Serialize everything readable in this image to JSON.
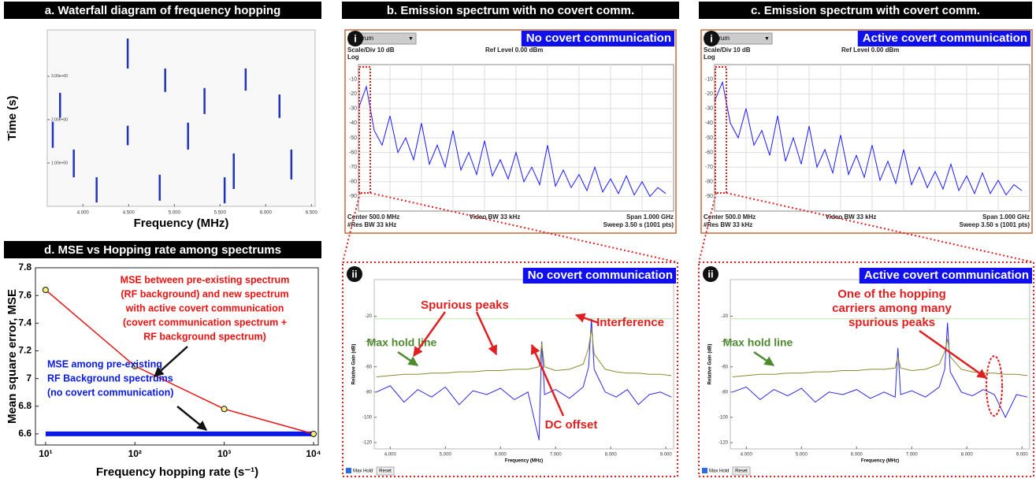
{
  "chart_data": [
    {
      "type": "waterfall",
      "title": "a. Waterfall diagram of frequency hopping",
      "x_label": "Frequency (MHz)",
      "y_label": "Time (s)",
      "color": "#2233bb",
      "xlim": [
        3.61,
        6.54
      ],
      "ylim": [
        0,
        4.07
      ],
      "xticks": [
        {
          "value": 4,
          "label": "4.000"
        },
        {
          "value": 4.5,
          "label": "4.500"
        },
        {
          "value": 5,
          "label": "5.000"
        },
        {
          "value": 5.5,
          "label": "5.500"
        },
        {
          "value": 6,
          "label": "6.000"
        },
        {
          "value": 6.5,
          "label": "6.500"
        }
      ],
      "yticks": [
        {
          "value": 1,
          "label": "1.00e+00"
        },
        {
          "value": 2,
          "label": "2.00e+00"
        },
        {
          "value": 3,
          "label": "3.00e+00"
        }
      ],
      "x": [
        4.49,
        4.9,
        5.78,
        3.75,
        5.33,
        3.67,
        4.49,
        5.15,
        5.65,
        3.9,
        6.28,
        4.15,
        4.84,
        5.55,
        6.15
      ],
      "y0": [
        3.18,
        2.64,
        2.67,
        2.04,
        2.13,
        1.35,
        1.41,
        1.31,
        0.4,
        0.67,
        0.62,
        0.09,
        0.13,
        0.07,
        2.04
      ],
      "y1": [
        3.87,
        3.18,
        3.18,
        2.62,
        2.73,
        1.95,
        1.86,
        1.93,
        1.22,
        1.31,
        1.31,
        0.67,
        0.73,
        0.67,
        2.58
      ]
    },
    {
      "type": "analyzer",
      "title": "b. Emission spectrum with no covert comm.",
      "badge": "No covert communication",
      "marker": "i",
      "color": "#1a1aff",
      "screen_labels": {
        "menu": "trum",
        "scale": "Scale/Div 10 dB",
        "ref": "Ref Level 0.00 dBm",
        "log": "Log",
        "center": "Center 500.0 MHz",
        "res": "#Res BW 33 kHz",
        "video": "Video BW 33 kHz",
        "span": "Span 1.000 GHz",
        "sweep": "Sweep 3.50 s (1001 pts)"
      },
      "xlim": [
        0,
        1000
      ],
      "ylim": [
        -100,
        0
      ],
      "yticks": [
        -10,
        -20,
        -30,
        -40,
        -50,
        -60,
        -70,
        -80,
        -90
      ],
      "grid": true,
      "x": [
        0,
        25,
        50,
        75,
        100,
        125,
        150,
        175,
        200,
        225,
        250,
        275,
        300,
        325,
        350,
        375,
        400,
        425,
        450,
        475,
        500,
        525,
        550,
        575,
        600,
        625,
        650,
        675,
        700,
        725,
        750,
        775,
        800,
        825,
        850,
        875,
        900,
        925,
        950,
        975
      ],
      "values": [
        -30,
        -15,
        -45,
        -55,
        -35,
        -60,
        -50,
        -65,
        -40,
        -68,
        -55,
        -70,
        -45,
        -72,
        -60,
        -75,
        -52,
        -76,
        -65,
        -78,
        -60,
        -80,
        -70,
        -82,
        -55,
        -83,
        -72,
        -84,
        -75,
        -86,
        -70,
        -87,
        -78,
        -88,
        -76,
        -89,
        -80,
        -90,
        -84,
        -88
      ]
    },
    {
      "type": "analyzer",
      "title": "c. Emission spectrum with covert comm.",
      "badge": "Active covert communication",
      "marker": "i",
      "color": "#1a1aff",
      "screen_labels": {
        "menu": "trum",
        "scale": "Scale/Div 10 dB",
        "ref": "Ref Level 0.00 dBm",
        "log": "Log",
        "center": "Center 500.0 MHz",
        "res": "#Res BW 33 kHz",
        "video": "Video BW 33 kHz",
        "span": "Span 1.000 GHz",
        "sweep": "Sweep 3.50 s (1001 pts)"
      },
      "xlim": [
        0,
        1000
      ],
      "ylim": [
        -100,
        0
      ],
      "yticks": [
        -10,
        -20,
        -30,
        -40,
        -50,
        -60,
        -70,
        -80,
        -90
      ],
      "grid": true,
      "x": [
        0,
        25,
        50,
        75,
        100,
        125,
        150,
        175,
        200,
        225,
        250,
        275,
        300,
        325,
        350,
        375,
        400,
        425,
        450,
        475,
        500,
        525,
        550,
        575,
        600,
        625,
        650,
        675,
        700,
        725,
        750,
        775,
        800,
        825,
        850,
        875,
        900,
        925,
        950,
        975
      ],
      "values": [
        -25,
        -12,
        -40,
        -50,
        -30,
        -55,
        -45,
        -62,
        -35,
        -66,
        -50,
        -68,
        -42,
        -70,
        -58,
        -74,
        -48,
        -75,
        -62,
        -77,
        -55,
        -79,
        -66,
        -81,
        -58,
        -82,
        -70,
        -84,
        -73,
        -85,
        -68,
        -86,
        -76,
        -88,
        -74,
        -88,
        -79,
        -89,
        -82,
        -86
      ]
    },
    {
      "type": "zoom",
      "badge": "No covert communication",
      "marker": "ii",
      "x_label": "Frequency (MHz)",
      "y_label": "Relative Gain (dB)",
      "checkbox": "Max Hold",
      "button": "Reset",
      "xlim": [
        3.71,
        9.14
      ],
      "ylim": [
        -125,
        9
      ],
      "xticks": [
        {
          "value": 4,
          "label": "4.000"
        },
        {
          "value": 5,
          "label": "5.000"
        },
        {
          "value": 6,
          "label": "6.000"
        },
        {
          "value": 7,
          "label": "7.000"
        },
        {
          "value": 8,
          "label": "8.000"
        },
        {
          "value": 9,
          "label": "9.000"
        }
      ],
      "yticks": [
        -20,
        -40,
        -60,
        -80,
        -100,
        -120
      ],
      "threshold_line": {
        "value": -22,
        "color": "#b8e6a8"
      },
      "x": [
        3.75,
        4.0,
        4.25,
        4.5,
        4.75,
        5.0,
        5.25,
        5.5,
        5.75,
        6.0,
        6.25,
        6.5,
        6.7,
        6.75,
        6.8,
        7.0,
        7.25,
        7.5,
        7.6,
        7.65,
        7.7,
        7.9,
        8.1,
        8.3,
        8.5,
        8.7,
        8.9,
        9.1
      ],
      "series": [
        {
          "color": "#2a2aee",
          "values": [
            -80,
            -75,
            -88,
            -78,
            -84,
            -76,
            -90,
            -79,
            -82,
            -77,
            -86,
            -80,
            -118,
            -40,
            -82,
            -78,
            -85,
            -76,
            -60,
            -22,
            -62,
            -80,
            -84,
            -78,
            -90,
            -82,
            -80,
            -84
          ]
        },
        {
          "color": "#8a8a30",
          "values": [
            -68,
            -67,
            -66,
            -66,
            -65,
            -65,
            -64,
            -64,
            -63,
            -63,
            -62,
            -62,
            -60,
            -42,
            -60,
            -63,
            -62,
            -58,
            -45,
            -30,
            -50,
            -62,
            -64,
            -65,
            -65,
            -66,
            -66,
            -67
          ]
        }
      ],
      "annotations": [
        {
          "text": "Spurious peaks",
          "color": "#e02020"
        },
        {
          "text": "Interference",
          "color": "#e02020"
        },
        {
          "text": "DC offset",
          "color": "#e02020"
        },
        {
          "text": "Max hold line",
          "color": "#4e8a2e"
        }
      ]
    },
    {
      "type": "zoom",
      "badge": "Active covert communication",
      "marker": "ii",
      "x_label": "Frequency (MHz)",
      "y_label": "Relative Gain (dB)",
      "checkbox": "Max Hold",
      "button": "Reset",
      "xlim": [
        3.71,
        9.14
      ],
      "ylim": [
        -125,
        9
      ],
      "xticks": [
        {
          "value": 4,
          "label": "4.000"
        },
        {
          "value": 5,
          "label": "5.000"
        },
        {
          "value": 6,
          "label": "6.000"
        },
        {
          "value": 7,
          "label": "7.000"
        },
        {
          "value": 8,
          "label": "8.000"
        },
        {
          "value": 9,
          "label": "9.000"
        }
      ],
      "yticks": [
        -20,
        -40,
        -60,
        -80,
        -100,
        -120
      ],
      "threshold_line": {
        "value": -22,
        "color": "#b8e6a8"
      },
      "x": [
        3.75,
        4.0,
        4.25,
        4.5,
        4.75,
        5.0,
        5.25,
        5.5,
        5.75,
        6.0,
        6.25,
        6.5,
        6.7,
        6.75,
        6.8,
        7.0,
        7.25,
        7.5,
        7.6,
        7.65,
        7.7,
        7.9,
        8.1,
        8.3,
        8.5,
        8.7,
        8.9,
        9.1
      ],
      "series": [
        {
          "color": "#2a2aee",
          "values": [
            -80,
            -76,
            -86,
            -78,
            -83,
            -77,
            -88,
            -80,
            -82,
            -78,
            -85,
            -80,
            -84,
            -45,
            -82,
            -79,
            -84,
            -76,
            -62,
            -25,
            -64,
            -80,
            -83,
            -78,
            -82,
            -100,
            -82,
            -84
          ]
        },
        {
          "color": "#8a8a30",
          "values": [
            -68,
            -67,
            -66,
            -66,
            -65,
            -65,
            -64,
            -64,
            -63,
            -63,
            -62,
            -62,
            -61,
            -52,
            -61,
            -63,
            -62,
            -58,
            -48,
            -38,
            -52,
            -62,
            -64,
            -65,
            -65,
            -66,
            -66,
            -67
          ]
        }
      ],
      "annotations": [
        {
          "text": [
            "One of the hopping",
            "carriers among many",
            "spurious peaks"
          ],
          "color": "#e02020"
        },
        {
          "text": "Max hold line",
          "color": "#4e8a2e"
        }
      ]
    },
    {
      "type": "line",
      "title": "d. MSE vs Hopping rate among spectrums",
      "x_label": "Frequency hopping rate (s⁻¹)",
      "y_label": "Mean square error, MSE",
      "x_scale": "log",
      "xlim": [
        7.7,
        11300
      ],
      "ylim": [
        6.52,
        7.8
      ],
      "xticks": [
        {
          "value": 10,
          "label": "10¹"
        },
        {
          "value": 100,
          "label": "10²"
        },
        {
          "value": 1000,
          "label": "10³"
        },
        {
          "value": 10000,
          "label": "10⁴"
        }
      ],
      "yticks": [
        6.6,
        6.8,
        7,
        7.2,
        7.4,
        7.6,
        7.8
      ],
      "x": [
        10,
        100,
        1000,
        10000
      ],
      "series": [
        {
          "color": "#ee1111",
          "marker_color": "#f5f07a",
          "values": [
            7.64,
            7.09,
            6.78,
            6.6
          ]
        },
        {
          "color": "#0a1ae6",
          "values": [
            6.6,
            6.6,
            6.6,
            6.6
          ]
        }
      ],
      "annotations": [
        {
          "text": [
            "MSE between pre-existing spectrum",
            "(RF background) and new spectrum",
            "with active covert communication",
            "(covert communication spectrum +",
            "RF background spectrum)"
          ],
          "color": "#ee1111"
        },
        {
          "text": [
            "MSE among pre-existing",
            "RF Background spectrums",
            "(no covert communication)"
          ],
          "color": "#0a1ae6"
        }
      ]
    }
  ]
}
